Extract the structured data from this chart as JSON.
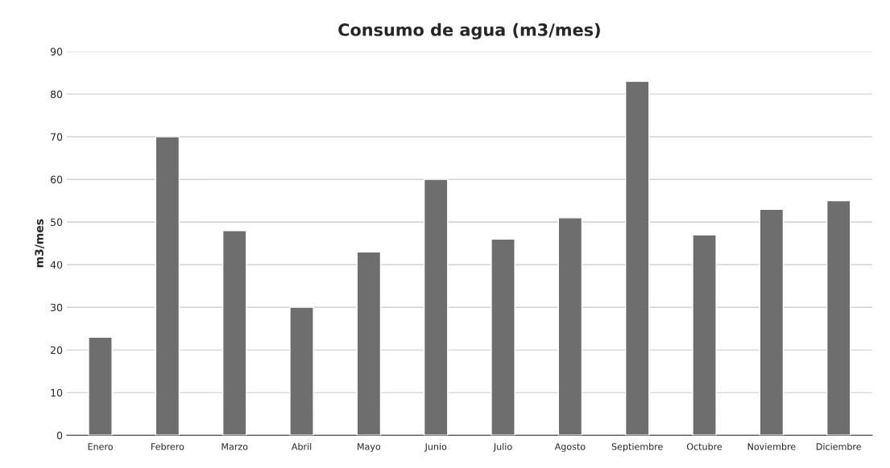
{
  "chart_data": {
    "type": "bar",
    "title": "Consumo de agua (m3/mes)",
    "ylabel": "m3/mes",
    "categories": [
      "Enero",
      "Febrero",
      "Marzo",
      "Abril",
      "Mayo",
      "Junio",
      "Julio",
      "Agosto",
      "Septiembre",
      "Octubre",
      "Noviembre",
      "Diciembre"
    ],
    "values": [
      23,
      70,
      48,
      30,
      43,
      60,
      46,
      51,
      83,
      47,
      53,
      55
    ],
    "color": "#6e6e6e",
    "ylim": [
      0,
      90
    ],
    "yticks": [
      0,
      10,
      20,
      30,
      40,
      50,
      60,
      70,
      80,
      90
    ],
    "grid": "y"
  }
}
